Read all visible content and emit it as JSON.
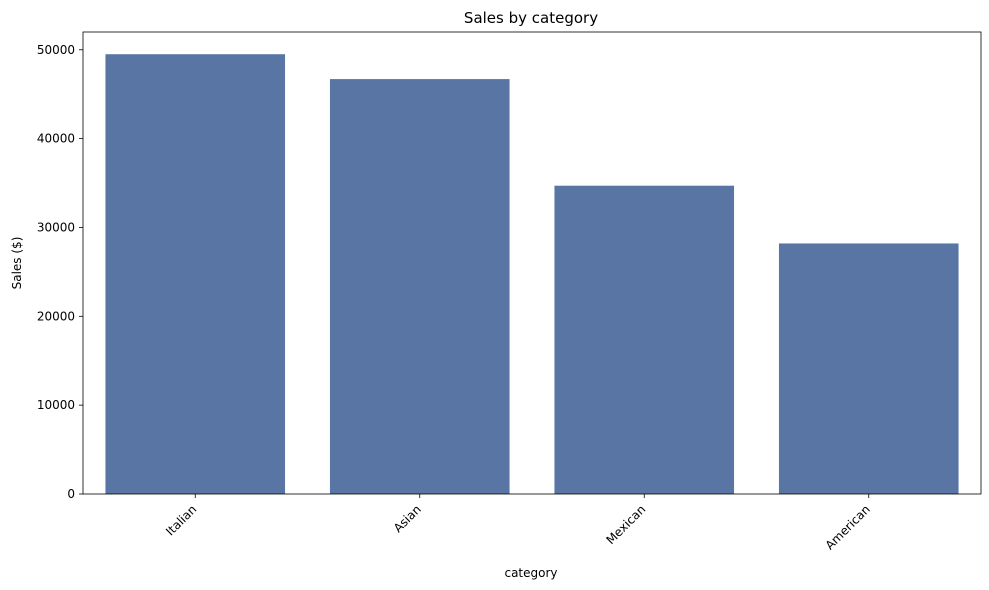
{
  "chart_data": {
    "type": "bar",
    "title": "Sales by category",
    "xlabel": "category",
    "ylabel": "Sales ($)",
    "categories": [
      "Italian",
      "Asian",
      "Mexican",
      "American"
    ],
    "values": [
      49500,
      46700,
      34700,
      28200
    ],
    "ylim": [
      0,
      52000
    ],
    "yticks": [
      0,
      10000,
      20000,
      30000,
      40000,
      50000
    ],
    "ytick_labels": [
      "0",
      "10000",
      "20000",
      "30000",
      "40000",
      "50000"
    ],
    "grid": false,
    "bar_color": "#5975a4"
  }
}
